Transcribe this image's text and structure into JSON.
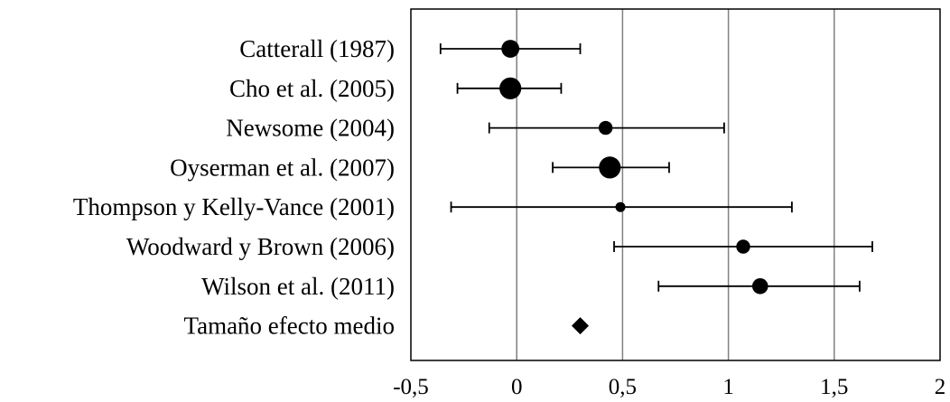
{
  "chart_data": {
    "type": "scatter",
    "subtype": "forest-plot",
    "title": "",
    "xlabel": "",
    "ylabel": "",
    "xlim": [
      -0.5,
      2
    ],
    "xticks": [
      "-0,5",
      "0",
      "0,5",
      "1",
      "1,5",
      "2"
    ],
    "xtick_values": [
      -0.5,
      0,
      0.5,
      1,
      1.5,
      2
    ],
    "grid": "vertical",
    "marker_color": "#000000",
    "grid_color": "#808080",
    "studies": [
      {
        "label": "Catterall (1987)",
        "effect": -0.03,
        "ci": [
          -0.36,
          0.3
        ],
        "weight": 3
      },
      {
        "label": "Cho et al. (2005)",
        "effect": -0.03,
        "ci": [
          -0.28,
          0.21
        ],
        "weight": 4
      },
      {
        "label": "Newsome (2004)",
        "effect": 0.42,
        "ci": [
          -0.13,
          0.98
        ],
        "weight": 2
      },
      {
        "label": "Oyserman et al. (2007)",
        "effect": 0.44,
        "ci": [
          0.17,
          0.72
        ],
        "weight": 4
      },
      {
        "label": "Thompson y Kelly-Vance (2001)",
        "effect": 0.49,
        "ci": [
          -0.31,
          1.3
        ],
        "weight": 1
      },
      {
        "label": "Woodward y Brown (2006)",
        "effect": 1.07,
        "ci": [
          0.46,
          1.68
        ],
        "weight": 2
      },
      {
        "label": "Wilson et al. (2011)",
        "effect": 1.15,
        "ci": [
          0.67,
          1.62
        ],
        "weight": 2.5
      }
    ],
    "summary": {
      "label": "Tamaño efecto medio",
      "effect": 0.3,
      "marker": "diamond"
    }
  }
}
